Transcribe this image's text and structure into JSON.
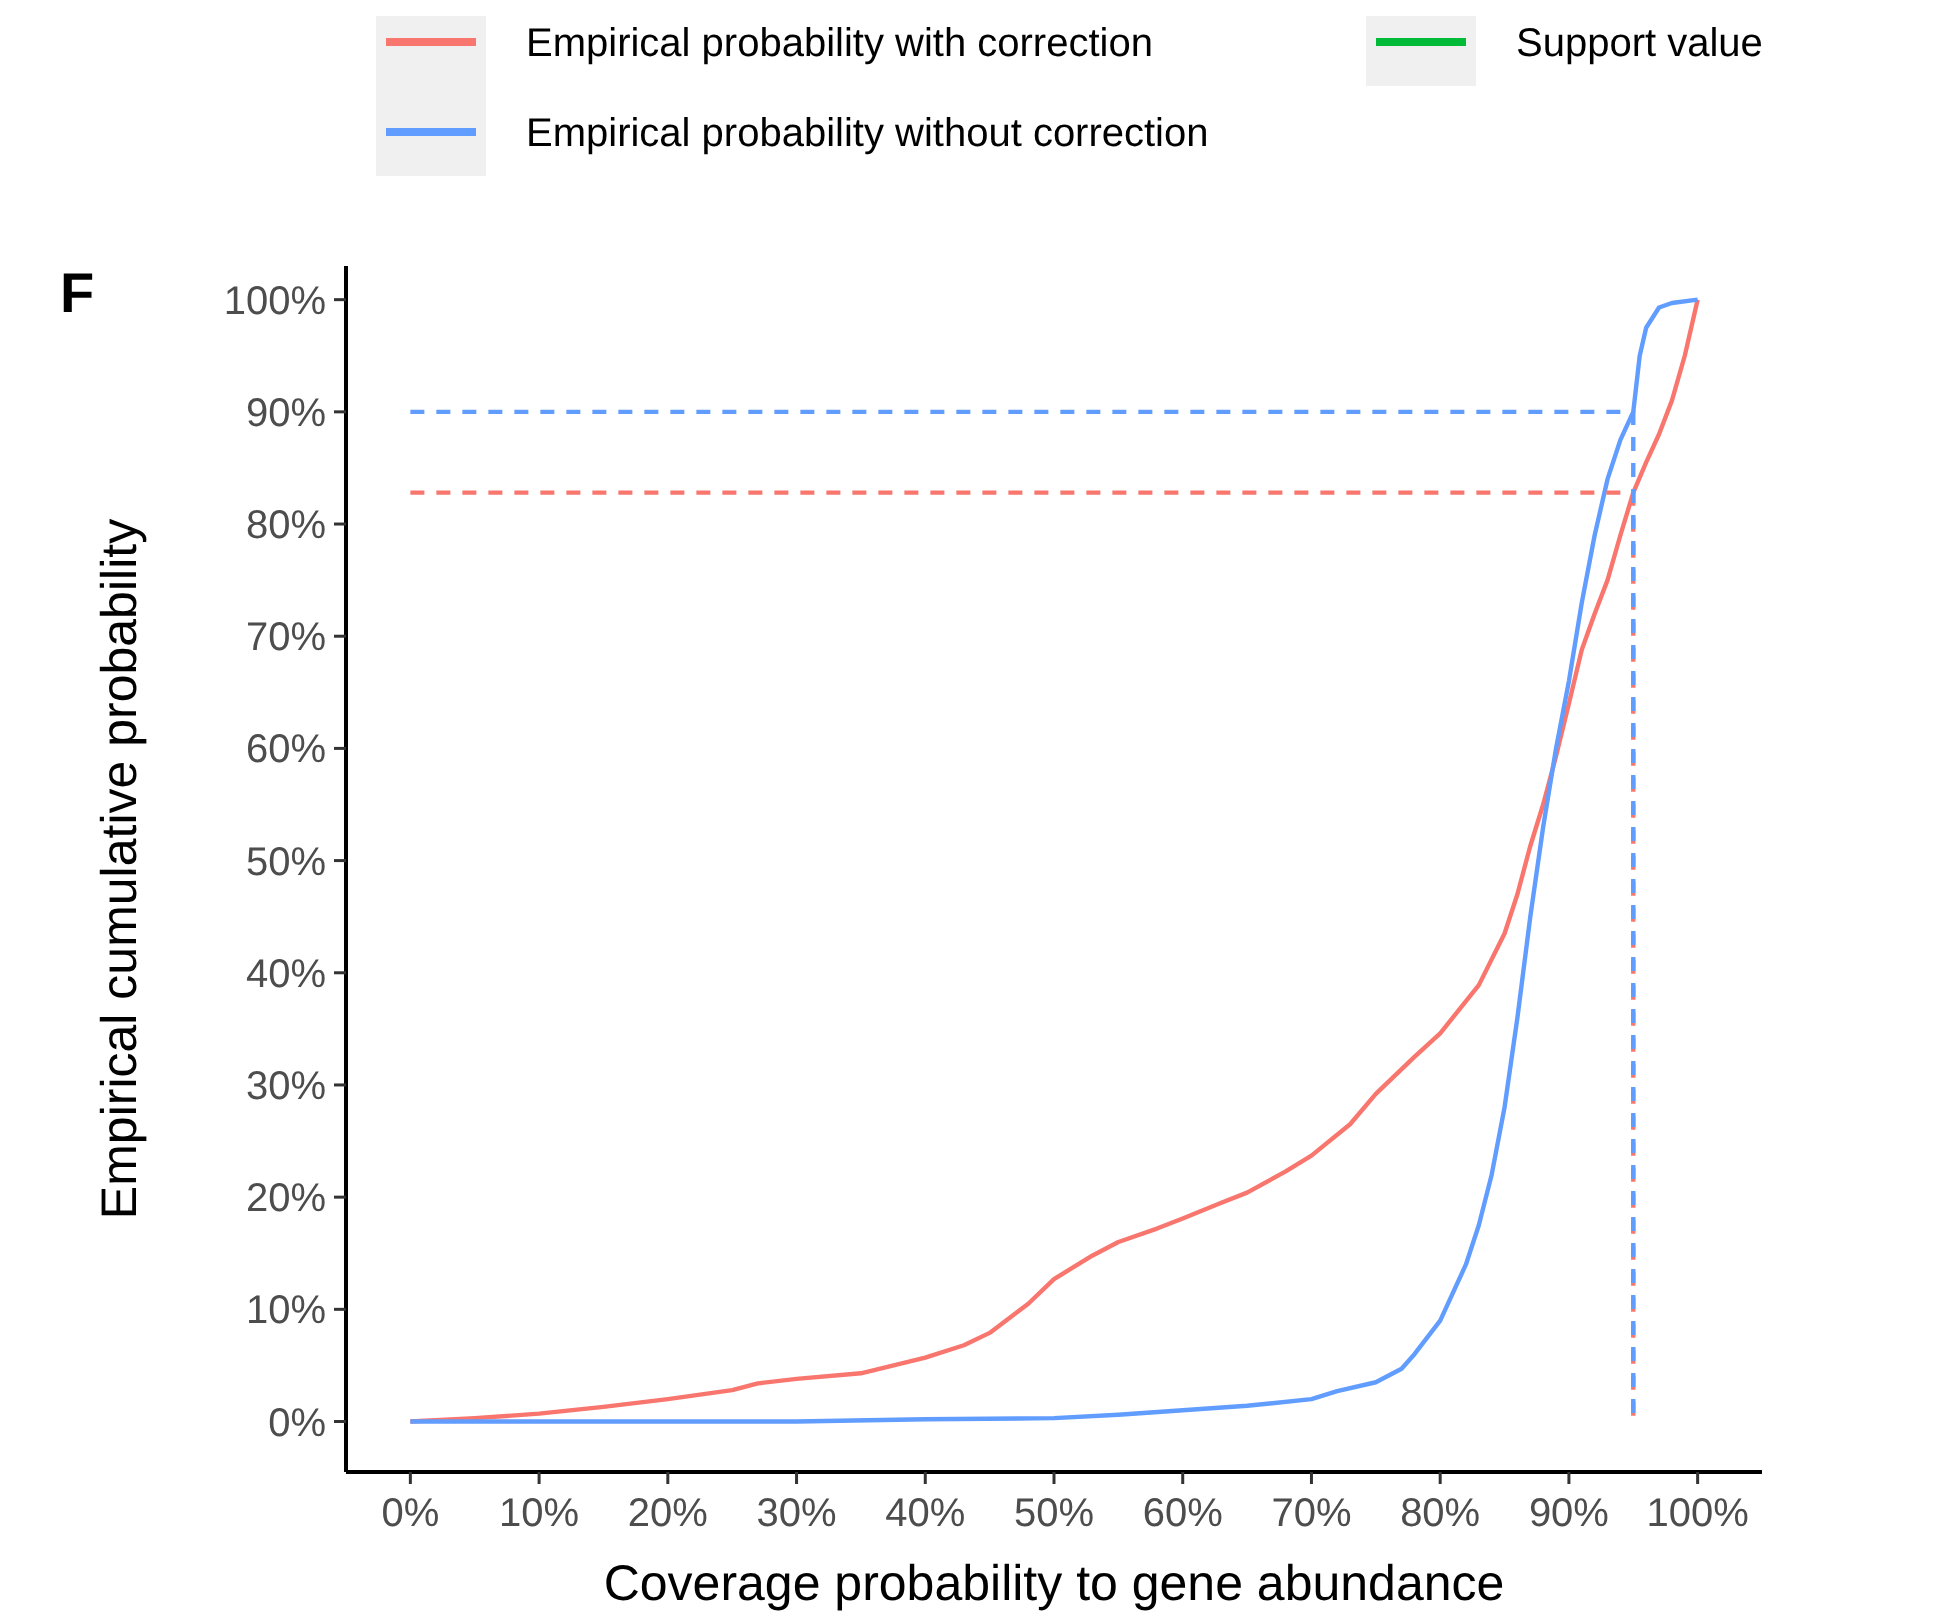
{
  "chart_data": {
    "type": "line",
    "xlabel": "Coverage probability to gene abundance",
    "ylabel": "Empirical cumulative probability",
    "annotations": [
      "F"
    ],
    "xlim": [
      -5,
      105
    ],
    "ylim": [
      -4.5,
      103
    ],
    "xticks": [
      {
        "value": 0,
        "label": "0%"
      },
      {
        "value": 10,
        "label": "10%"
      },
      {
        "value": 20,
        "label": "20%"
      },
      {
        "value": 30,
        "label": "30%"
      },
      {
        "value": 40,
        "label": "40%"
      },
      {
        "value": 50,
        "label": "50%"
      },
      {
        "value": 60,
        "label": "60%"
      },
      {
        "value": 70,
        "label": "70%"
      },
      {
        "value": 80,
        "label": "80%"
      },
      {
        "value": 90,
        "label": "90%"
      },
      {
        "value": 100,
        "label": "100%"
      }
    ],
    "yticks": [
      {
        "value": 0,
        "label": "0%"
      },
      {
        "value": 10,
        "label": "10%"
      },
      {
        "value": 20,
        "label": "20%"
      },
      {
        "value": 30,
        "label": "30%"
      },
      {
        "value": 40,
        "label": "40%"
      },
      {
        "value": 50,
        "label": "50%"
      },
      {
        "value": 60,
        "label": "60%"
      },
      {
        "value": 70,
        "label": "70%"
      },
      {
        "value": 80,
        "label": "80%"
      },
      {
        "value": 90,
        "label": "90%"
      },
      {
        "value": 100,
        "label": "100%"
      }
    ],
    "grid": false,
    "legend": "top",
    "marker": "none",
    "line_style": "solid",
    "series": [
      {
        "name": "Empirical probability with correction",
        "color": "#f8766d",
        "x": [
          0,
          5,
          10,
          15,
          20,
          25,
          27,
          30,
          35,
          40,
          43,
          45,
          48,
          50,
          53,
          55,
          58,
          60,
          63,
          65,
          68,
          70,
          73,
          75,
          78,
          80,
          83,
          85,
          86,
          87,
          88,
          89,
          90,
          91,
          92,
          93,
          94,
          95,
          96,
          97,
          98,
          99,
          100
        ],
        "values": [
          0,
          0.3,
          0.7,
          1.3,
          2,
          2.8,
          3.4,
          3.8,
          4.3,
          5.7,
          6.8,
          7.9,
          10.5,
          12.7,
          14.8,
          16,
          17.2,
          18.1,
          19.5,
          20.4,
          22.3,
          23.7,
          26.5,
          29.2,
          32.5,
          34.6,
          38.9,
          43.5,
          47,
          51.3,
          55,
          59.3,
          64,
          68.8,
          72,
          75,
          79,
          82.8,
          85.5,
          88,
          91,
          95,
          100
        ]
      },
      {
        "name": "Empirical probability without correction",
        "color": "#619cff",
        "x": [
          0,
          10,
          20,
          30,
          40,
          50,
          55,
          60,
          65,
          70,
          72,
          75,
          77,
          78,
          80,
          82,
          83,
          84,
          85,
          86,
          87,
          88,
          89,
          90,
          91,
          92,
          93,
          94,
          95,
          95.5,
          96,
          97,
          98,
          100
        ],
        "values": [
          0,
          0,
          0,
          0,
          0.2,
          0.3,
          0.6,
          1,
          1.4,
          2,
          2.7,
          3.5,
          4.7,
          6,
          9,
          14,
          17.5,
          22,
          28,
          36,
          45,
          53,
          60,
          66,
          73,
          79,
          84,
          87.5,
          90,
          95,
          97.5,
          99.3,
          99.7,
          100
        ]
      },
      {
        "name": "Support value",
        "color": "#00ba38"
      },
      {
        "color": "#f8766d",
        "line_style": "dashed",
        "x": [
          0,
          95,
          95
        ],
        "values": [
          82.8,
          82.8,
          0
        ]
      },
      {
        "color": "#619cff",
        "line_style": "dashed",
        "x": [
          0,
          95,
          95
        ],
        "values": [
          90,
          90,
          0
        ]
      }
    ]
  }
}
